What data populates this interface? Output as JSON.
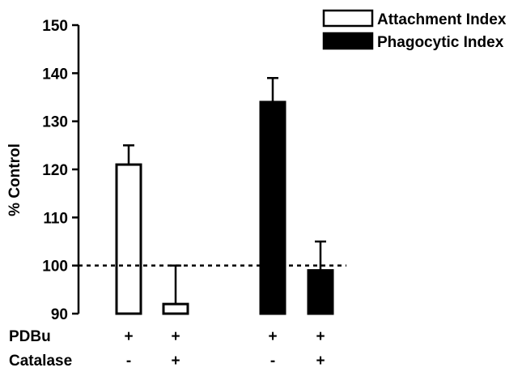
{
  "chart_data": {
    "type": "bar",
    "title": "",
    "xlabel": "",
    "ylabel": "% Control",
    "ylim": [
      90,
      150
    ],
    "yticks": [
      90,
      100,
      110,
      120,
      130,
      140,
      150
    ],
    "reference_line": 100,
    "grid": false,
    "legend_position": "top-right",
    "series": [
      {
        "name": "Attachment Index",
        "fill": "#ffffff",
        "stroke": "#000000"
      },
      {
        "name": "Phagocytic Index",
        "fill": "#000000",
        "stroke": "#000000"
      }
    ],
    "bars": [
      {
        "series": 0,
        "value": 121,
        "error": 4
      },
      {
        "series": 0,
        "value": 92,
        "error": 8
      },
      {
        "series": 1,
        "value": 134,
        "error": 5
      },
      {
        "series": 1,
        "value": 99,
        "error": 6
      }
    ],
    "conditions": [
      {
        "label": "PDBu",
        "values": [
          "+",
          "+",
          "+",
          "+"
        ]
      },
      {
        "label": "Catalase",
        "values": [
          "-",
          "+",
          "-",
          "+"
        ]
      }
    ]
  }
}
